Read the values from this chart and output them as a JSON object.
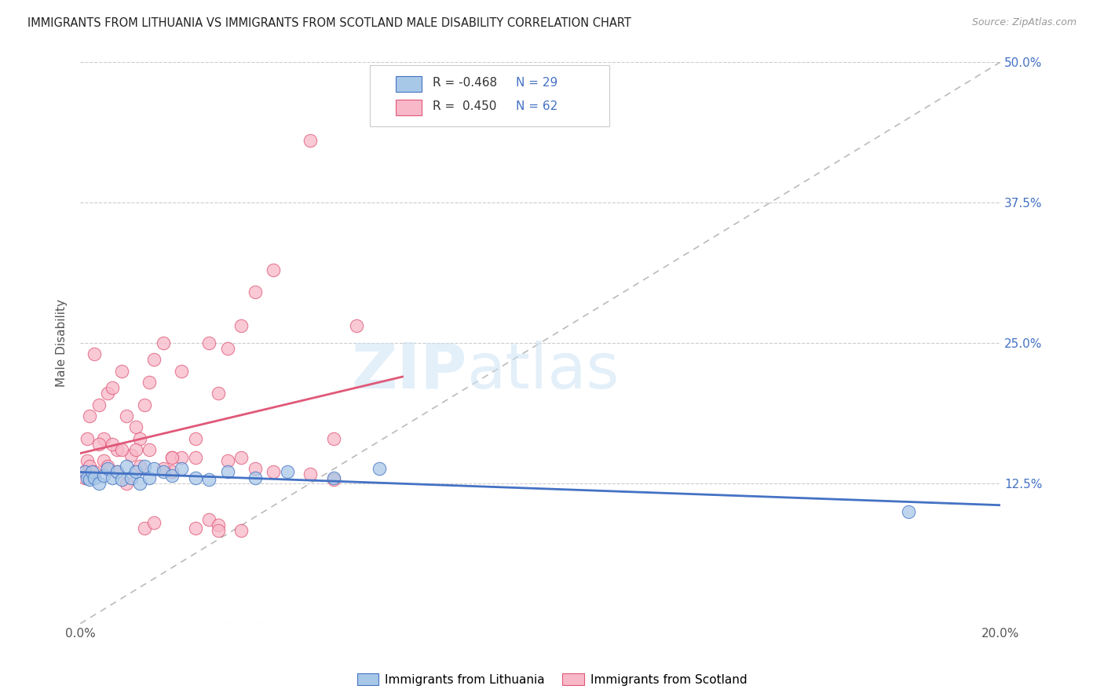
{
  "title": "IMMIGRANTS FROM LITHUANIA VS IMMIGRANTS FROM SCOTLAND MALE DISABILITY CORRELATION CHART",
  "source": "Source: ZipAtlas.com",
  "ylabel": "Male Disability",
  "xlim": [
    0.0,
    0.2
  ],
  "ylim": [
    0.0,
    0.5
  ],
  "xticks": [
    0.0,
    0.05,
    0.1,
    0.15,
    0.2
  ],
  "yticks": [
    0.0,
    0.125,
    0.25,
    0.375,
    0.5
  ],
  "xticklabels": [
    "0.0%",
    "",
    "",
    "",
    "20.0%"
  ],
  "yticklabels_right": [
    "",
    "12.5%",
    "25.0%",
    "37.5%",
    "50.0%"
  ],
  "watermark_zip": "ZIP",
  "watermark_atlas": "atlas",
  "legend_r1": "-0.468",
  "legend_n1": "29",
  "legend_r2": "0.450",
  "legend_n2": "62",
  "color_lithuania": "#a8c8e8",
  "color_scotland": "#f8b8c8",
  "line_color_lithuania": "#4472c4",
  "line_color_scotland": "#e05878",
  "diagonal_color": "#bbbbbb",
  "background_color": "#ffffff",
  "grid_color": "#cccccc",
  "lithuania_x": [
    0.001,
    0.0015,
    0.002,
    0.0025,
    0.003,
    0.004,
    0.005,
    0.006,
    0.007,
    0.008,
    0.009,
    0.01,
    0.011,
    0.012,
    0.013,
    0.014,
    0.015,
    0.016,
    0.018,
    0.02,
    0.022,
    0.025,
    0.028,
    0.032,
    0.038,
    0.045,
    0.055,
    0.065,
    0.18
  ],
  "lithuania_y": [
    0.135,
    0.13,
    0.128,
    0.135,
    0.13,
    0.125,
    0.132,
    0.138,
    0.13,
    0.135,
    0.128,
    0.14,
    0.13,
    0.135,
    0.125,
    0.14,
    0.13,
    0.138,
    0.135,
    0.132,
    0.138,
    0.13,
    0.128,
    0.135,
    0.13,
    0.135,
    0.13,
    0.138,
    0.1
  ],
  "scotland_x": [
    0.001,
    0.0015,
    0.002,
    0.003,
    0.004,
    0.005,
    0.006,
    0.007,
    0.008,
    0.009,
    0.01,
    0.011,
    0.012,
    0.013,
    0.014,
    0.015,
    0.016,
    0.018,
    0.02,
    0.022,
    0.025,
    0.028,
    0.03,
    0.032,
    0.035,
    0.038,
    0.042,
    0.05,
    0.055,
    0.06,
    0.001,
    0.0015,
    0.002,
    0.003,
    0.004,
    0.005,
    0.006,
    0.007,
    0.008,
    0.009,
    0.01,
    0.012,
    0.014,
    0.016,
    0.018,
    0.02,
    0.022,
    0.025,
    0.028,
    0.03,
    0.032,
    0.035,
    0.038,
    0.042,
    0.05,
    0.055,
    0.015,
    0.013,
    0.02,
    0.025,
    0.03,
    0.035
  ],
  "scotland_y": [
    0.135,
    0.165,
    0.185,
    0.24,
    0.195,
    0.165,
    0.205,
    0.21,
    0.155,
    0.225,
    0.185,
    0.15,
    0.175,
    0.165,
    0.195,
    0.215,
    0.235,
    0.25,
    0.135,
    0.225,
    0.165,
    0.25,
    0.205,
    0.245,
    0.265,
    0.295,
    0.315,
    0.43,
    0.165,
    0.265,
    0.13,
    0.145,
    0.14,
    0.135,
    0.16,
    0.145,
    0.14,
    0.16,
    0.135,
    0.155,
    0.125,
    0.155,
    0.085,
    0.09,
    0.138,
    0.148,
    0.148,
    0.085,
    0.093,
    0.088,
    0.145,
    0.148,
    0.138,
    0.135,
    0.133,
    0.128,
    0.155,
    0.14,
    0.148,
    0.148,
    0.083,
    0.083
  ]
}
